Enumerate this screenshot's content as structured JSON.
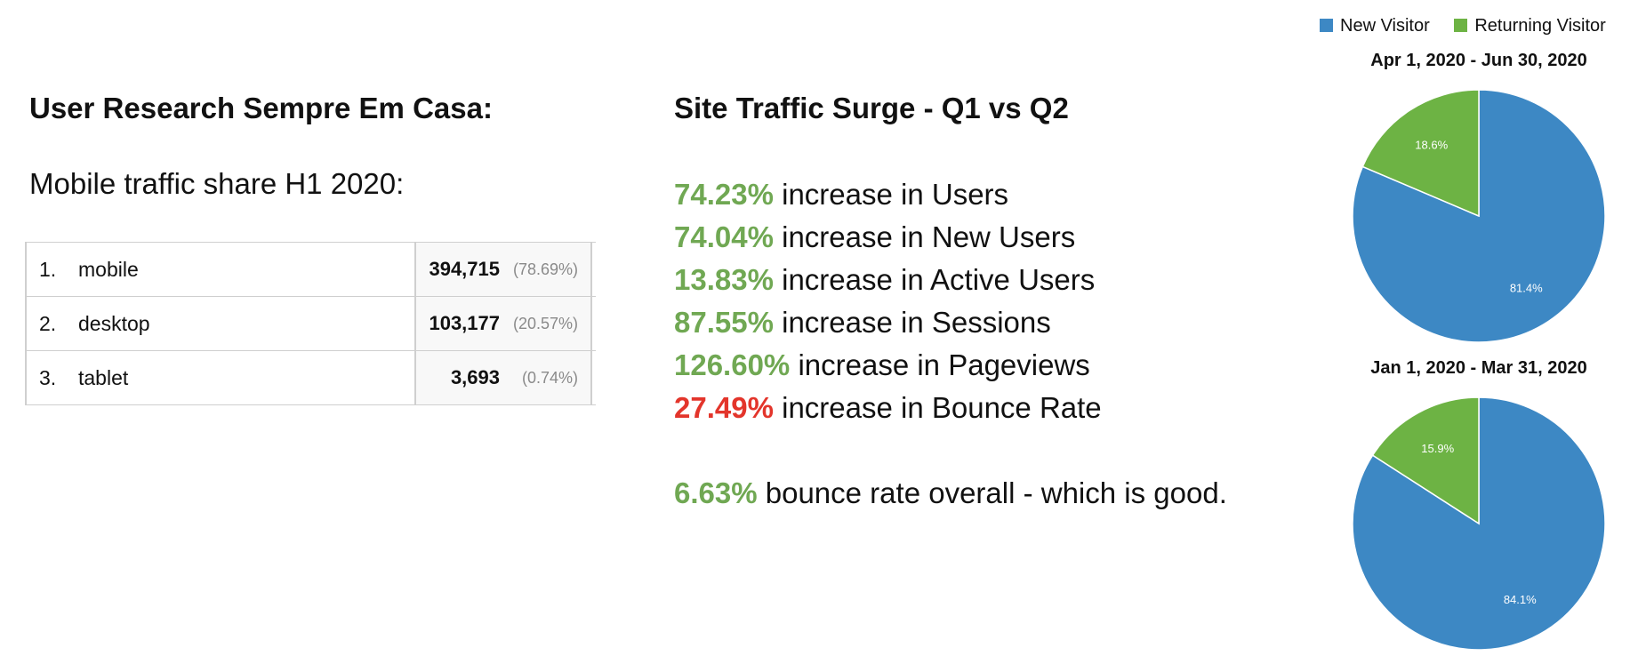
{
  "left": {
    "title": "User Research Sempre Em Casa:",
    "subtitle": "Mobile traffic share H1 2020:",
    "rows": [
      {
        "rank": "1.",
        "name": "mobile",
        "value": "394,715",
        "pct": "(78.69%)"
      },
      {
        "rank": "2.",
        "name": "desktop",
        "value": "103,177",
        "pct": "(20.57%)"
      },
      {
        "rank": "3.",
        "name": "tablet",
        "value": "3,693",
        "pct": "(0.74%)"
      }
    ]
  },
  "right": {
    "title": "Site Traffic Surge - Q1 vs Q2",
    "stats": [
      {
        "value": "74.23%",
        "text": " increase in Users",
        "color": "#70a853"
      },
      {
        "value": "74.04%",
        "text": " increase in New Users",
        "color": "#70a853"
      },
      {
        "value": "13.83%",
        "text": " increase in Active Users",
        "color": "#70a853"
      },
      {
        "value": "87.55%",
        "text": " increase in Sessions",
        "color": "#70a853"
      },
      {
        "value": "126.60%",
        "text": " increase in Pageviews",
        "color": "#70a853"
      },
      {
        "value": "27.49%",
        "text": " increase in Bounce Rate",
        "color": "#e3352b"
      }
    ],
    "overall": {
      "value": "6.63%",
      "text": " bounce rate overall - which is good.",
      "color": "#70a853"
    }
  },
  "chart_data": [
    {
      "type": "pie",
      "title": "Apr 1, 2020 - Jun 30, 2020",
      "legend": "top-right",
      "slices": [
        {
          "name": "New Visitor",
          "value": 81.4,
          "label": "81.4%",
          "color": "#3d88c4"
        },
        {
          "name": "Returning Visitor",
          "value": 18.6,
          "label": "18.6%",
          "color": "#6db344"
        }
      ]
    },
    {
      "type": "pie",
      "title": "Jan 1, 2020 - Mar 31, 2020",
      "legend": "top-right",
      "slices": [
        {
          "name": "New Visitor",
          "value": 84.1,
          "label": "84.1%",
          "color": "#3d88c4"
        },
        {
          "name": "Returning Visitor",
          "value": 15.9,
          "label": "15.9%",
          "color": "#6db344"
        }
      ]
    }
  ]
}
